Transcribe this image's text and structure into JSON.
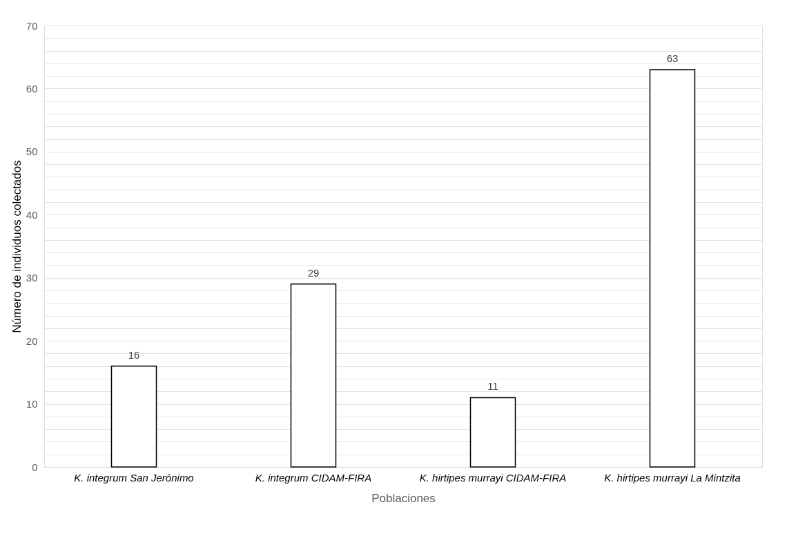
{
  "chart_data": {
    "type": "bar",
    "xlabel": "Poblaciones",
    "ylabel": "Número de individuos colectados",
    "categories": [
      "K. integrum San Jerónimo",
      "K. integrum CIDAM-FIRA",
      "K. hirtipes murrayi CIDAM-FIRA",
      "K. hirtipes murrayi La Mintzita"
    ],
    "values": [
      16,
      29,
      11,
      63
    ],
    "color": "#ffffff",
    "ylim": [
      0,
      70
    ],
    "yticks": [
      0,
      {
        "value": 2,
        "label": null
      },
      {
        "value": 4,
        "label": null
      },
      {
        "value": 6,
        "label": null
      },
      {
        "value": 8,
        "label": null
      },
      10,
      {
        "value": 12,
        "label": null
      },
      {
        "value": 14,
        "label": null
      },
      {
        "value": 16,
        "label": null
      },
      {
        "value": 18,
        "label": null
      },
      20,
      {
        "value": 22,
        "label": null
      },
      {
        "value": 24,
        "label": null
      },
      {
        "value": 26,
        "label": null
      },
      {
        "value": 28,
        "label": null
      },
      30,
      {
        "value": 32,
        "label": null
      },
      {
        "value": 34,
        "label": null
      },
      {
        "value": 36,
        "label": null
      },
      {
        "value": 38,
        "label": null
      },
      40,
      {
        "value": 42,
        "label": null
      },
      {
        "value": 44,
        "label": null
      },
      {
        "value": 46,
        "label": null
      },
      {
        "value": 48,
        "label": null
      },
      50,
      {
        "value": 52,
        "label": null
      },
      {
        "value": 54,
        "label": null
      },
      {
        "value": 56,
        "label": null
      },
      {
        "value": 58,
        "label": null
      },
      60,
      {
        "value": 62,
        "label": null
      },
      {
        "value": 64,
        "label": null
      },
      {
        "value": 66,
        "label": null
      },
      {
        "value": 68,
        "label": null
      },
      70
    ],
    "grid": true,
    "data_labels": true
  }
}
